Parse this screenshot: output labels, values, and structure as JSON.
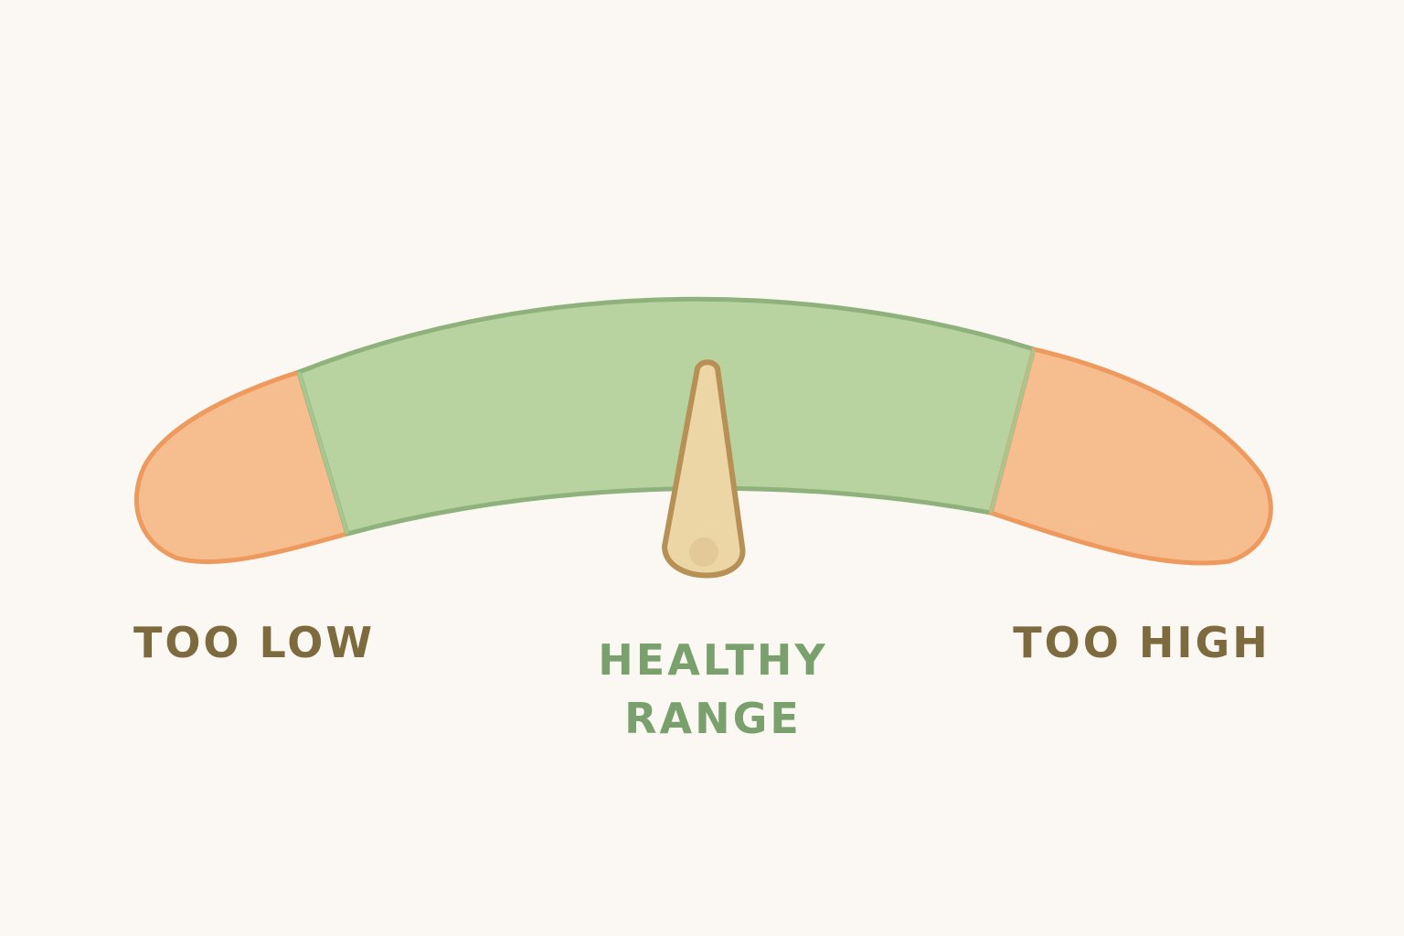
{
  "labels": {
    "too_low": "TOO LOW",
    "healthy_line1": "HEALTHY",
    "healthy_line2": "RANGE",
    "too_high": "TOO HIGH"
  },
  "needle": {
    "zone": "healthy",
    "value_fraction": 0.5
  },
  "colors": {
    "background": "#fbf8f3",
    "healthy_fill": "#b9d3a0",
    "healthy_stroke": "#8fb27c",
    "warning_fill": "#f6bd8e",
    "warning_stroke": "#ee9a5e",
    "needle_fill": "#ecd6a6",
    "needle_stroke": "#b69055",
    "label_dark": "#7e6a3f",
    "label_green": "#7aa06e"
  }
}
